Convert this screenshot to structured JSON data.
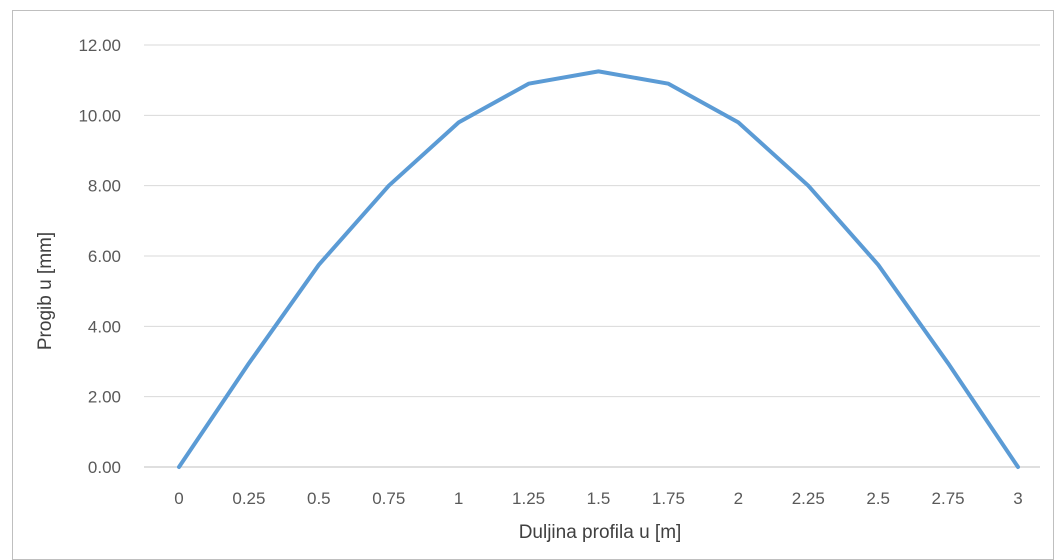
{
  "chart_data": {
    "type": "line",
    "title": "",
    "xlabel": "Duljina profila u [m]",
    "ylabel": "Progib u [mm]",
    "categories": [
      "0",
      "0.25",
      "0.5",
      "0.75",
      "1",
      "1.25",
      "1.5",
      "1.75",
      "2",
      "2.25",
      "2.5",
      "2.75",
      "3"
    ],
    "y_ticks": [
      "0.00",
      "2.00",
      "4.00",
      "6.00",
      "8.00",
      "10.00",
      "12.00"
    ],
    "ylim": [
      0,
      12
    ],
    "grid": true,
    "legend": "none",
    "series": [
      {
        "color": "#5b9bd5",
        "values": [
          0,
          2.95,
          5.75,
          8.0,
          9.8,
          10.9,
          11.25,
          10.9,
          9.8,
          8.0,
          5.75,
          2.95,
          0
        ]
      }
    ]
  }
}
